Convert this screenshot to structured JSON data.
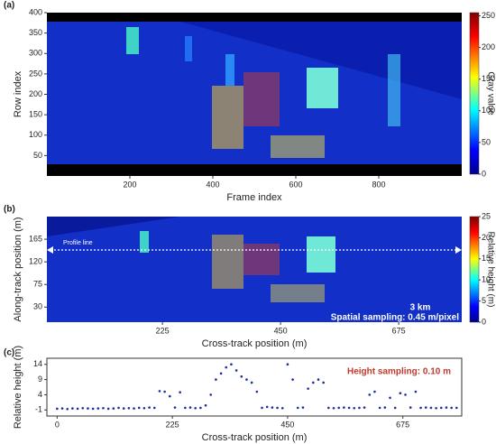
{
  "chart_data": [
    {
      "type": "heatmap",
      "label": "(a)",
      "xlabel": "Frame index",
      "ylabel": "Row index",
      "xlim": [
        0,
        1000
      ],
      "xticks": [
        200,
        400,
        600,
        800
      ],
      "ylim": [
        0,
        400
      ],
      "yticks": [
        50,
        100,
        150,
        200,
        250,
        300,
        350,
        400
      ],
      "colorbar": {
        "label": "Gray value",
        "lim": [
          0,
          255
        ],
        "ticks": [
          0,
          50,
          100,
          150,
          200,
          250
        ]
      }
    },
    {
      "type": "heatmap",
      "label": "(b)",
      "xlabel": "Cross-track position (m)",
      "ylabel": "Along-track position (m)",
      "xlim": [
        5,
        795
      ],
      "xticks": [
        225,
        450,
        675
      ],
      "ylim": [
        0,
        210
      ],
      "yticks": [
        30,
        75,
        120,
        165
      ],
      "colorbar": {
        "label": "Relative height (m)",
        "lim": [
          0,
          25
        ],
        "ticks": [
          0,
          5,
          10,
          15,
          20,
          25
        ]
      },
      "annotations": [
        "Profile line",
        "3 km",
        "Spatial sampling: 0.45 m/pixel"
      ]
    },
    {
      "type": "scatter",
      "label": "(c)",
      "xlabel": "Cross-track position (m)",
      "ylabel": "Relative height (m)",
      "xlim": [
        -20,
        790
      ],
      "xticks": [
        0,
        225,
        450,
        675
      ],
      "ylim": [
        -3,
        16
      ],
      "yticks": [
        -1,
        4,
        9,
        14
      ],
      "annotations": [
        "Height sampling: 0.10 m"
      ],
      "color": "#1a2fa0",
      "x": [
        0,
        10,
        20,
        30,
        40,
        50,
        60,
        70,
        80,
        90,
        100,
        110,
        120,
        130,
        140,
        150,
        160,
        170,
        180,
        190,
        200,
        210,
        220,
        230,
        240,
        250,
        260,
        270,
        280,
        290,
        300,
        310,
        320,
        330,
        340,
        350,
        360,
        370,
        380,
        390,
        400,
        410,
        420,
        430,
        440,
        450,
        460,
        470,
        480,
        490,
        500,
        510,
        520,
        530,
        540,
        550,
        560,
        570,
        580,
        590,
        600,
        610,
        620,
        630,
        640,
        650,
        660,
        670,
        680,
        690,
        700,
        710,
        720,
        730,
        740,
        750,
        760,
        770,
        780
      ],
      "values": [
        -0.6,
        -0.5,
        -0.7,
        -0.5,
        -0.6,
        -0.4,
        -0.5,
        -0.6,
        -0.5,
        -0.4,
        -0.6,
        -0.5,
        -0.3,
        -0.5,
        -0.4,
        -0.5,
        -0.3,
        -0.4,
        -0.2,
        -0.3,
        5.2,
        5.0,
        3.5,
        -0.2,
        4.8,
        -0.3,
        -0.2,
        -0.4,
        -0.3,
        0.5,
        4,
        9,
        11,
        13,
        14,
        12,
        10,
        9,
        8,
        5,
        -0.3,
        0,
        -0.2,
        -0.3,
        -0.4,
        14,
        9,
        -0.3,
        -0.2,
        6,
        8,
        9,
        8,
        -0.3,
        -0.4,
        -0.3,
        -0.2,
        -0.3,
        -0.4,
        -0.3,
        -0.2,
        4,
        5,
        -0.3,
        -0.2,
        3,
        -0.3,
        4.5,
        4,
        -0.2,
        5,
        -0.3,
        -0.2,
        -0.3,
        -0.4,
        -0.3,
        -0.2,
        -0.3,
        -0.3
      ]
    }
  ]
}
